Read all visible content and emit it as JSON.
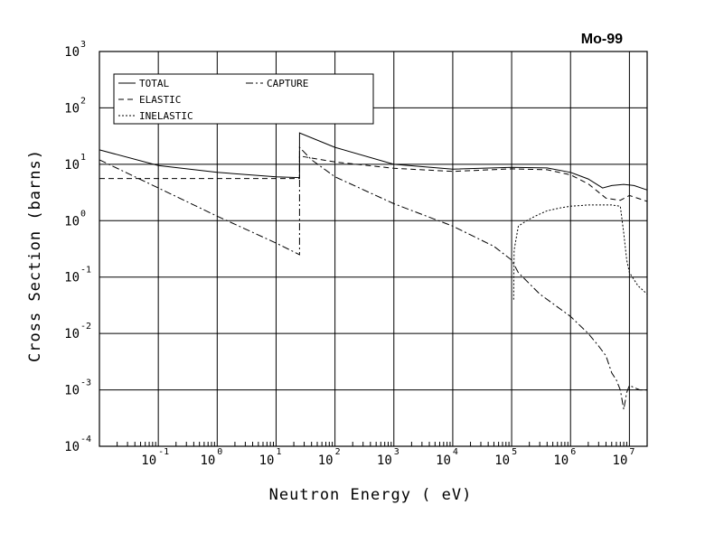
{
  "chart_data": {
    "type": "line",
    "title": "Mo-99",
    "xlabel": "Neutron Energy ( eV)",
    "ylabel": "Cross Section (barns)",
    "x_scale": "log",
    "y_scale": "log",
    "xlim": [
      0.01,
      20000000
    ],
    "ylim": [
      0.0001,
      1000
    ],
    "grid": true,
    "legend_position": "top-left",
    "x_ticks": [
      {
        "value": 0.1,
        "base": "10",
        "exp": "-1"
      },
      {
        "value": 1,
        "base": "10",
        "exp": "0"
      },
      {
        "value": 10,
        "base": "10",
        "exp": "1"
      },
      {
        "value": 100,
        "base": "10",
        "exp": "2"
      },
      {
        "value": 1000,
        "base": "10",
        "exp": "3"
      },
      {
        "value": 10000,
        "base": "10",
        "exp": "4"
      },
      {
        "value": 100000,
        "base": "10",
        "exp": "5"
      },
      {
        "value": 1000000,
        "base": "10",
        "exp": "6"
      },
      {
        "value": 10000000,
        "base": "10",
        "exp": "7"
      }
    ],
    "y_ticks": [
      {
        "value": 0.0001,
        "base": "10",
        "exp": "-4"
      },
      {
        "value": 0.001,
        "base": "10",
        "exp": "-3"
      },
      {
        "value": 0.01,
        "base": "10",
        "exp": "-2"
      },
      {
        "value": 0.1,
        "base": "10",
        "exp": "-1"
      },
      {
        "value": 1,
        "base": "10",
        "exp": "0"
      },
      {
        "value": 10,
        "base": "10",
        "exp": "1"
      },
      {
        "value": 100,
        "base": "10",
        "exp": "2"
      },
      {
        "value": 1000,
        "base": "10",
        "exp": "3"
      }
    ],
    "series": [
      {
        "name": "TOTAL",
        "dash": "solid",
        "x": [
          0.01,
          0.1,
          1,
          10,
          25,
          25,
          100,
          1000,
          10000,
          100000,
          400000,
          1000000,
          2000000,
          3500000,
          5000000,
          8000000,
          12000000,
          20000000
        ],
        "y": [
          18,
          9.5,
          7.2,
          6.0,
          5.8,
          36,
          20,
          10,
          8.2,
          8.8,
          8.6,
          7.2,
          5.5,
          3.8,
          4.2,
          4.4,
          4.2,
          3.5
        ]
      },
      {
        "name": "ELASTIC",
        "dash": "dashed",
        "x": [
          0.01,
          0.1,
          1,
          10,
          25,
          25,
          100,
          1000,
          10000,
          100000,
          400000,
          1000000,
          2000000,
          4000000,
          7000000,
          10000000,
          20000000
        ],
        "y": [
          5.6,
          5.6,
          5.6,
          5.6,
          5.6,
          14,
          11,
          8.5,
          7.5,
          8.3,
          8.0,
          6.5,
          4.5,
          2.5,
          2.3,
          2.8,
          2.2
        ]
      },
      {
        "name": "INELASTIC",
        "dash": "dotted",
        "x": [
          108000,
          110000,
          130000,
          180000,
          250000,
          400000,
          700000,
          1000000,
          2000000,
          5000000,
          7000000,
          8000000,
          9000000,
          10000000,
          14000000,
          20000000
        ],
        "y": [
          0.04,
          0.3,
          0.8,
          1.0,
          1.2,
          1.5,
          1.7,
          1.8,
          1.9,
          1.9,
          1.8,
          0.6,
          0.2,
          0.12,
          0.07,
          0.05
        ]
      },
      {
        "name": "CAPTURE",
        "dash": "dash-dot",
        "x": [
          0.01,
          0.1,
          1,
          10,
          25,
          25,
          40,
          100,
          1000,
          10000,
          50000,
          100000,
          130000,
          300000,
          1000000,
          2000000,
          3000000,
          4000000,
          5000000,
          6000000,
          7000000,
          8000000,
          9000000,
          10000000,
          12000000,
          15000000,
          20000000
        ],
        "y": [
          12,
          3.8,
          1.2,
          0.4,
          0.25,
          20,
          12,
          6,
          2.0,
          0.8,
          0.35,
          0.2,
          0.12,
          0.05,
          0.02,
          0.01,
          0.006,
          0.004,
          0.002,
          0.0015,
          0.001,
          0.00045,
          0.0009,
          0.0012,
          0.0011,
          0.001,
          0.001
        ]
      }
    ]
  }
}
